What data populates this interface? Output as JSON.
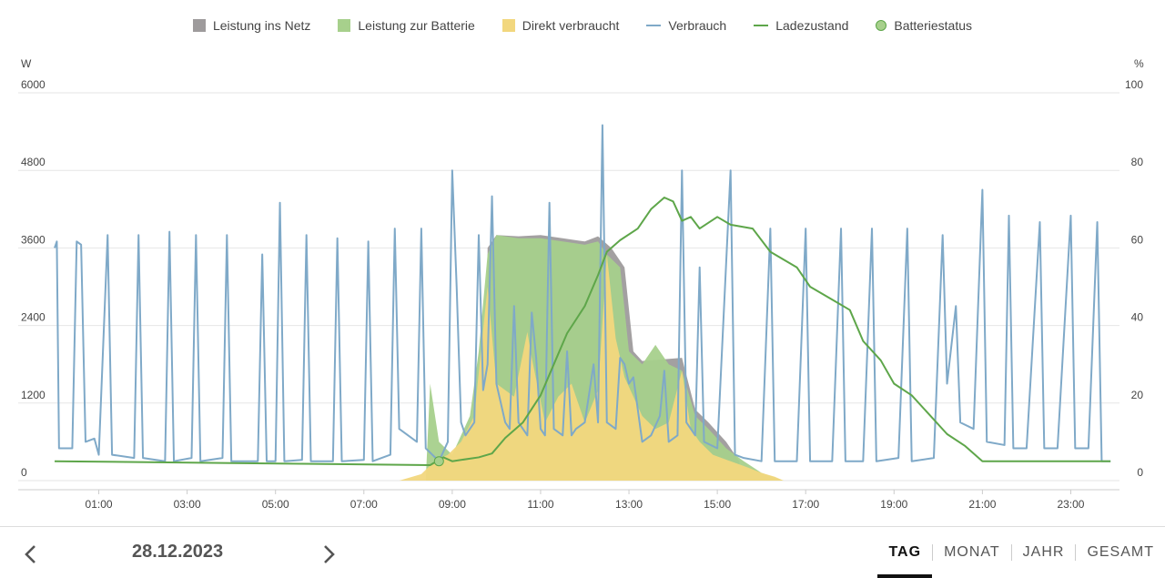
{
  "legend": [
    {
      "label": "Leistung ins Netz",
      "kind": "box",
      "color": "#9e9b9c"
    },
    {
      "label": "Leistung zur Batterie",
      "kind": "box",
      "color": "#a7d08c"
    },
    {
      "label": "Direkt verbraucht",
      "kind": "box",
      "color": "#f2d77e"
    },
    {
      "label": "Verbrauch",
      "kind": "line",
      "color": "#7fa9c8"
    },
    {
      "label": "Ladezustand",
      "kind": "line",
      "color": "#5ea64a"
    },
    {
      "label": "Batteriestatus",
      "kind": "dot",
      "color": "#a7d08c"
    }
  ],
  "axis": {
    "left_unit": "W",
    "right_unit": "%"
  },
  "footer": {
    "date": "28.12.2023",
    "prev_icon": "chevron-left-icon",
    "next_icon": "chevron-right-icon",
    "tabs": [
      {
        "label": "TAG",
        "active": true
      },
      {
        "label": "MONAT",
        "active": false
      },
      {
        "label": "JAHR",
        "active": false
      },
      {
        "label": "GESAMT",
        "active": false
      }
    ]
  },
  "chart_data": {
    "type": "area",
    "x_range": [
      0,
      24
    ],
    "x_ticks": [
      "01:00",
      "03:00",
      "05:00",
      "07:00",
      "09:00",
      "11:00",
      "13:00",
      "15:00",
      "17:00",
      "19:00",
      "21:00",
      "23:00"
    ],
    "y_left": {
      "label": "W",
      "range": [
        0,
        6000
      ],
      "ticks": [
        0,
        1200,
        2400,
        3600,
        4800,
        6000
      ]
    },
    "y_right": {
      "label": "%",
      "range": [
        0,
        100
      ],
      "ticks": [
        0,
        20,
        40,
        60,
        80,
        100
      ]
    },
    "grid": true,
    "legend_position": "top-center",
    "series": [
      {
        "name": "Direkt verbraucht",
        "kind": "area",
        "axis": "left",
        "points": [
          [
            7.8,
            0
          ],
          [
            8.3,
            100
          ],
          [
            8.6,
            300
          ],
          [
            8.9,
            400
          ],
          [
            9.2,
            600
          ],
          [
            9.5,
            1000
          ],
          [
            9.8,
            3000
          ],
          [
            10,
            1500
          ],
          [
            10.4,
            1300
          ],
          [
            10.7,
            2300
          ],
          [
            10.8,
            1900
          ],
          [
            11.1,
            900
          ],
          [
            11.4,
            1300
          ],
          [
            11.7,
            1500
          ],
          [
            12,
            900
          ],
          [
            12.3,
            1400
          ],
          [
            12.5,
            3500
          ],
          [
            12.7,
            2200
          ],
          [
            12.9,
            1600
          ],
          [
            13.3,
            1000
          ],
          [
            13.6,
            800
          ],
          [
            13.9,
            900
          ],
          [
            14.2,
            1700
          ],
          [
            14.4,
            800
          ],
          [
            14.6,
            600
          ],
          [
            14.9,
            400
          ],
          [
            15.3,
            300
          ],
          [
            15.7,
            200
          ],
          [
            16,
            120
          ],
          [
            16.3,
            60
          ],
          [
            16.5,
            0
          ]
        ]
      },
      {
        "name": "Leistung zur Batterie",
        "kind": "area",
        "axis": "left",
        "points": [
          [
            8.4,
            0
          ],
          [
            8.5,
            1500
          ],
          [
            8.7,
            600
          ],
          [
            9,
            400
          ],
          [
            9.2,
            700
          ],
          [
            9.4,
            1000
          ],
          [
            9.6,
            2000
          ],
          [
            9.8,
            3500
          ],
          [
            10,
            3800
          ],
          [
            10.5,
            3750
          ],
          [
            11,
            3750
          ],
          [
            11.5,
            3700
          ],
          [
            12,
            3650
          ],
          [
            12.3,
            3700
          ],
          [
            12.5,
            3500
          ],
          [
            12.8,
            3300
          ],
          [
            13,
            2000
          ],
          [
            13.3,
            1800
          ],
          [
            13.6,
            2100
          ],
          [
            13.9,
            1800
          ],
          [
            14.2,
            1700
          ],
          [
            14.5,
            1000
          ],
          [
            14.8,
            800
          ],
          [
            15.2,
            500
          ],
          [
            15.6,
            300
          ],
          [
            16,
            120
          ],
          [
            16.5,
            0
          ]
        ]
      },
      {
        "name": "Leistung ins Netz",
        "kind": "area",
        "axis": "left",
        "points": [
          [
            9.8,
            3600
          ],
          [
            10,
            3800
          ],
          [
            10.5,
            3780
          ],
          [
            11,
            3800
          ],
          [
            11.5,
            3750
          ],
          [
            12,
            3700
          ],
          [
            12.3,
            3780
          ],
          [
            12.6,
            3600
          ],
          [
            12.9,
            3300
          ],
          [
            13.1,
            2000
          ],
          [
            13.3,
            1850
          ],
          [
            14.2,
            1900
          ],
          [
            14.5,
            1100
          ],
          [
            14.8,
            900
          ],
          [
            15.2,
            600
          ],
          [
            15.5,
            300
          ]
        ]
      },
      {
        "name": "Verbrauch",
        "kind": "line",
        "axis": "left",
        "points": [
          [
            0,
            3600
          ],
          [
            0.05,
            3700
          ],
          [
            0.1,
            500
          ],
          [
            0.4,
            500
          ],
          [
            0.5,
            3700
          ],
          [
            0.6,
            3650
          ],
          [
            0.7,
            600
          ],
          [
            0.9,
            650
          ],
          [
            1,
            400
          ],
          [
            1.2,
            3800
          ],
          [
            1.3,
            400
          ],
          [
            1.8,
            350
          ],
          [
            1.9,
            3800
          ],
          [
            2,
            350
          ],
          [
            2.5,
            300
          ],
          [
            2.6,
            3850
          ],
          [
            2.7,
            300
          ],
          [
            3.1,
            350
          ],
          [
            3.2,
            3800
          ],
          [
            3.3,
            300
          ],
          [
            3.8,
            350
          ],
          [
            3.9,
            3800
          ],
          [
            4,
            300
          ],
          [
            4.6,
            300
          ],
          [
            4.7,
            3500
          ],
          [
            4.8,
            300
          ],
          [
            5,
            300
          ],
          [
            5.1,
            4300
          ],
          [
            5.2,
            300
          ],
          [
            5.6,
            320
          ],
          [
            5.7,
            3800
          ],
          [
            5.8,
            300
          ],
          [
            6.3,
            300
          ],
          [
            6.4,
            3750
          ],
          [
            6.5,
            300
          ],
          [
            7,
            320
          ],
          [
            7.1,
            3700
          ],
          [
            7.2,
            300
          ],
          [
            7.6,
            400
          ],
          [
            7.7,
            3900
          ],
          [
            7.8,
            800
          ],
          [
            8.2,
            600
          ],
          [
            8.3,
            3900
          ],
          [
            8.4,
            500
          ],
          [
            8.7,
            300
          ],
          [
            8.9,
            600
          ],
          [
            9,
            4800
          ],
          [
            9.1,
            3000
          ],
          [
            9.2,
            900
          ],
          [
            9.3,
            700
          ],
          [
            9.5,
            900
          ],
          [
            9.6,
            3800
          ],
          [
            9.7,
            1400
          ],
          [
            9.8,
            1800
          ],
          [
            9.9,
            4400
          ],
          [
            10,
            1500
          ],
          [
            10.2,
            900
          ],
          [
            10.3,
            800
          ],
          [
            10.4,
            2700
          ],
          [
            10.5,
            900
          ],
          [
            10.7,
            700
          ],
          [
            10.8,
            2600
          ],
          [
            10.9,
            1900
          ],
          [
            11,
            800
          ],
          [
            11.1,
            700
          ],
          [
            11.2,
            4300
          ],
          [
            11.3,
            800
          ],
          [
            11.5,
            700
          ],
          [
            11.6,
            2000
          ],
          [
            11.7,
            700
          ],
          [
            11.8,
            800
          ],
          [
            12,
            900
          ],
          [
            12.2,
            1800
          ],
          [
            12.3,
            900
          ],
          [
            12.4,
            5500
          ],
          [
            12.5,
            900
          ],
          [
            12.7,
            800
          ],
          [
            12.8,
            1900
          ],
          [
            12.9,
            1800
          ],
          [
            13,
            1500
          ],
          [
            13.1,
            1600
          ],
          [
            13.3,
            600
          ],
          [
            13.5,
            700
          ],
          [
            13.7,
            1000
          ],
          [
            13.8,
            1700
          ],
          [
            13.9,
            600
          ],
          [
            14.1,
            700
          ],
          [
            14.2,
            4800
          ],
          [
            14.3,
            900
          ],
          [
            14.5,
            700
          ],
          [
            14.6,
            3300
          ],
          [
            14.7,
            600
          ],
          [
            15,
            500
          ],
          [
            15.3,
            4800
          ],
          [
            15.4,
            400
          ],
          [
            15.6,
            350
          ],
          [
            16,
            300
          ],
          [
            16.2,
            3900
          ],
          [
            16.3,
            300
          ],
          [
            16.8,
            300
          ],
          [
            17,
            3900
          ],
          [
            17.1,
            300
          ],
          [
            17.6,
            300
          ],
          [
            17.8,
            3900
          ],
          [
            17.9,
            300
          ],
          [
            18.3,
            300
          ],
          [
            18.5,
            3900
          ],
          [
            18.6,
            300
          ],
          [
            19.1,
            350
          ],
          [
            19.3,
            3900
          ],
          [
            19.4,
            300
          ],
          [
            19.9,
            350
          ],
          [
            20.1,
            3800
          ],
          [
            20.2,
            1500
          ],
          [
            20.4,
            2700
          ],
          [
            20.5,
            900
          ],
          [
            20.8,
            800
          ],
          [
            21,
            4500
          ],
          [
            21.1,
            600
          ],
          [
            21.5,
            550
          ],
          [
            21.6,
            4100
          ],
          [
            21.7,
            500
          ],
          [
            22,
            500
          ],
          [
            22.3,
            4000
          ],
          [
            22.4,
            500
          ],
          [
            22.7,
            500
          ],
          [
            23,
            4100
          ],
          [
            23.1,
            500
          ],
          [
            23.4,
            500
          ],
          [
            23.6,
            4000
          ],
          [
            23.7,
            300
          ],
          [
            23.9,
            300
          ]
        ]
      },
      {
        "name": "Ladezustand",
        "kind": "line",
        "axis": "right",
        "points": [
          [
            0,
            5
          ],
          [
            8.5,
            4
          ],
          [
            8.8,
            6
          ],
          [
            9,
            5
          ],
          [
            9.6,
            6
          ],
          [
            9.9,
            7
          ],
          [
            10.2,
            11
          ],
          [
            10.6,
            15
          ],
          [
            11,
            22
          ],
          [
            11.3,
            30
          ],
          [
            11.6,
            38
          ],
          [
            12,
            45
          ],
          [
            12.3,
            53
          ],
          [
            12.5,
            59
          ],
          [
            12.8,
            62
          ],
          [
            13.2,
            65
          ],
          [
            13.5,
            70
          ],
          [
            13.8,
            73
          ],
          [
            14,
            72
          ],
          [
            14.2,
            67
          ],
          [
            14.4,
            68
          ],
          [
            14.6,
            65
          ],
          [
            15,
            68
          ],
          [
            15.3,
            66
          ],
          [
            15.8,
            65
          ],
          [
            16.2,
            59
          ],
          [
            16.8,
            55
          ],
          [
            17.1,
            50
          ],
          [
            17.7,
            46
          ],
          [
            18,
            44
          ],
          [
            18.3,
            36
          ],
          [
            18.7,
            31
          ],
          [
            19,
            25
          ],
          [
            19.4,
            22
          ],
          [
            19.8,
            17
          ],
          [
            20.2,
            12
          ],
          [
            20.6,
            9
          ],
          [
            21,
            5
          ],
          [
            23.9,
            5
          ]
        ]
      },
      {
        "name": "Batteriestatus",
        "kind": "marker",
        "axis": "right",
        "points": [
          [
            8.7,
            5
          ]
        ]
      }
    ]
  }
}
